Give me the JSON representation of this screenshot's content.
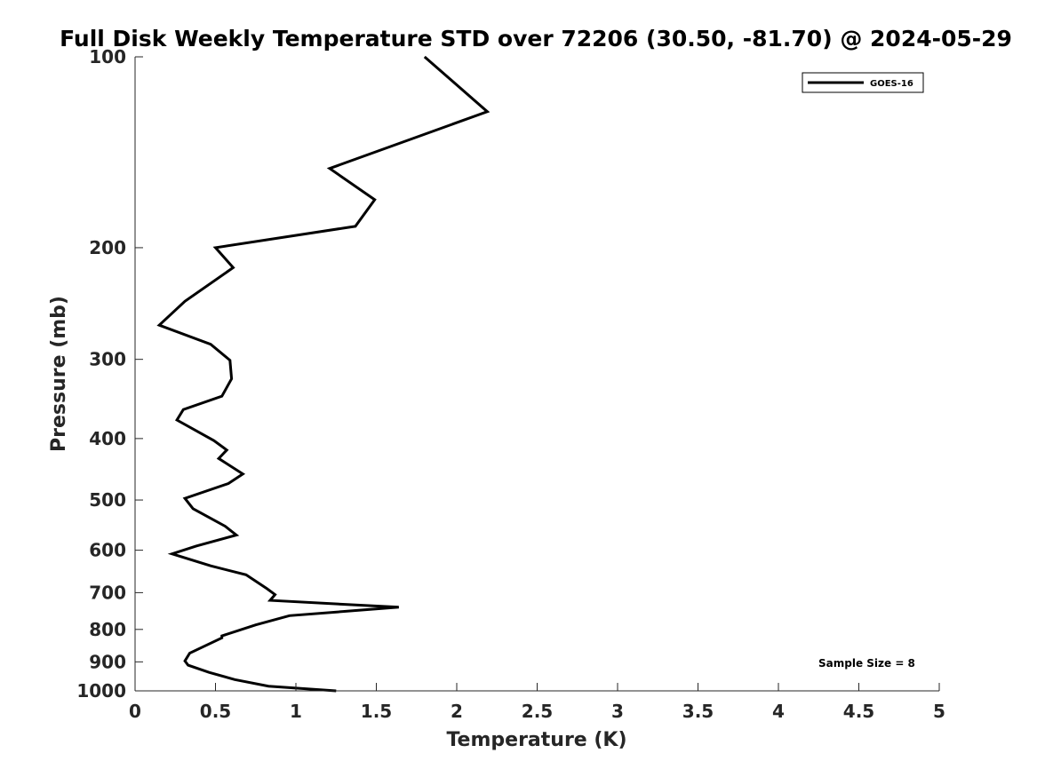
{
  "chart_data": {
    "type": "line",
    "title": "Full Disk Weekly Temperature STD over 72206 (30.50, -81.70) @ 2024-05-29",
    "xlabel": "Temperature (K)",
    "ylabel": "Pressure (mb)",
    "xlim": [
      0,
      5
    ],
    "ylim": [
      1000,
      100
    ],
    "yscale": "log",
    "y_reversed": true,
    "grid": false,
    "legend_position": "top-right",
    "xticks": [
      0,
      0.5,
      1,
      1.5,
      2,
      2.5,
      3,
      3.5,
      4,
      4.5,
      5
    ],
    "xtick_labels": [
      "0",
      "0.5",
      "1",
      "1.5",
      "2",
      "2.5",
      "3",
      "3.5",
      "4",
      "4.5",
      "5"
    ],
    "yticks": [
      100,
      200,
      300,
      400,
      500,
      600,
      700,
      800,
      900,
      1000
    ],
    "ytick_labels": [
      "100",
      "200",
      "300",
      "400",
      "500",
      "600",
      "700",
      "800",
      "900",
      "1000"
    ],
    "series": [
      {
        "name": "GOES-16",
        "color": "#000000",
        "x": [
          1.8,
          2.19,
          1.21,
          1.49,
          1.37,
          0.5,
          0.61,
          0.31,
          0.15,
          0.47,
          0.59,
          0.6,
          0.54,
          0.3,
          0.26,
          0.49,
          0.57,
          0.52,
          0.67,
          0.58,
          0.31,
          0.36,
          0.56,
          0.63,
          0.38,
          0.23,
          0.47,
          0.69,
          0.82,
          0.87,
          0.84,
          1.64,
          0.96,
          0.75,
          0.54,
          0.54,
          0.34,
          0.31,
          0.33,
          0.46,
          0.62,
          0.83,
          1.25
        ],
        "y": [
          100,
          122,
          150,
          168,
          185,
          200,
          215,
          243,
          265,
          284,
          301,
          322,
          343,
          360,
          374,
          403,
          417,
          430,
          455,
          471,
          497,
          516,
          550,
          568,
          591,
          608,
          635,
          656,
          690,
          705,
          720,
          738,
          761,
          787,
          819,
          825,
          872,
          897,
          911,
          935,
          960,
          983,
          1000
        ]
      }
    ],
    "annotations": [
      "Sample Size = 8"
    ]
  }
}
